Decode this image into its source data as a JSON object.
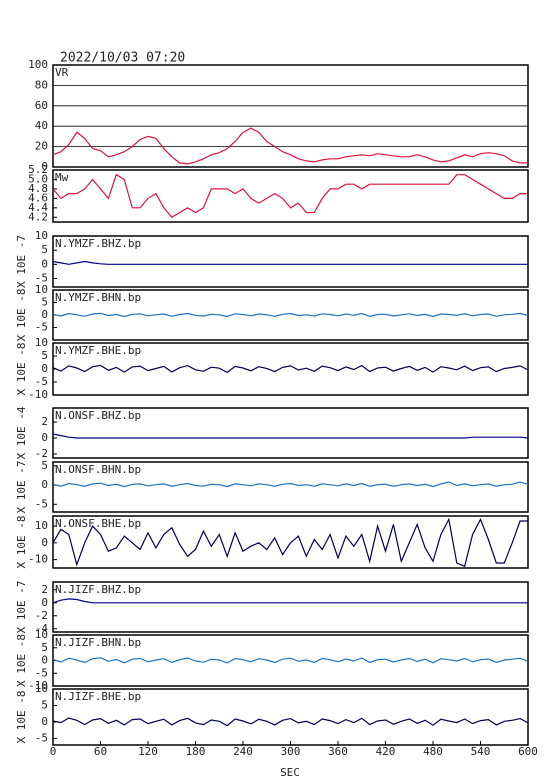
{
  "chart_data": {
    "type": "multi-panel-line",
    "title": "2022/10/03 07:20",
    "xlabel": "SEC",
    "x": [
      0,
      10,
      20,
      30,
      40,
      50,
      60,
      70,
      80,
      90,
      100,
      110,
      120,
      130,
      140,
      150,
      160,
      170,
      180,
      190,
      200,
      210,
      220,
      230,
      240,
      250,
      260,
      270,
      280,
      290,
      300,
      310,
      320,
      330,
      340,
      350,
      360,
      370,
      380,
      390,
      400,
      410,
      420,
      430,
      440,
      450,
      460,
      470,
      480,
      490,
      500,
      510,
      520,
      530,
      540,
      550,
      560,
      570,
      580,
      590,
      600
    ],
    "xlim": [
      0,
      600
    ],
    "xticks": [
      0,
      60,
      120,
      180,
      240,
      300,
      360,
      420,
      480,
      540,
      600
    ],
    "panels": [
      {
        "name": "VR",
        "color": "#dc143c",
        "grid": true,
        "ylim": [
          0,
          100
        ],
        "yticks": [
          0,
          20,
          40,
          60,
          80,
          100
        ],
        "values": [
          12,
          15,
          22,
          34,
          28,
          18,
          16,
          10,
          12,
          15,
          20,
          27,
          30,
          28,
          18,
          10,
          4,
          3,
          5,
          8,
          12,
          14,
          18,
          25,
          34,
          38,
          34,
          25,
          20,
          15,
          12,
          8,
          6,
          5,
          7,
          8,
          8,
          10,
          11,
          12,
          11,
          13,
          12,
          11,
          10,
          10,
          12,
          10,
          7,
          5,
          6,
          9,
          12,
          10,
          13,
          14,
          13,
          11,
          6,
          4,
          4
        ]
      },
      {
        "name": "Mw",
        "color": "#dc143c",
        "grid": false,
        "ylim": [
          4.1,
          5.2
        ],
        "yticks": [
          4.2,
          4.4,
          4.6,
          4.8,
          {
            "value": 5,
            "label": "5.0"
          },
          5.2
        ],
        "values": [
          4.8,
          4.6,
          4.7,
          4.7,
          4.8,
          5.0,
          4.8,
          4.6,
          5.1,
          5.0,
          4.4,
          4.4,
          4.6,
          4.7,
          4.4,
          4.2,
          4.3,
          4.4,
          4.3,
          4.4,
          4.8,
          4.8,
          4.8,
          4.7,
          4.8,
          4.6,
          4.5,
          4.6,
          4.7,
          4.6,
          4.4,
          4.5,
          4.3,
          4.3,
          4.6,
          4.8,
          4.8,
          4.9,
          4.9,
          4.8,
          4.9,
          4.9,
          4.9,
          4.9,
          4.9,
          4.9,
          4.9,
          4.9,
          4.9,
          4.9,
          4.9,
          5.1,
          5.1,
          5.0,
          4.9,
          4.8,
          4.7,
          4.6,
          4.6,
          4.7,
          4.7
        ]
      },
      {
        "name": "N.YMZF.BHZ.bp",
        "ylabel": "X 10E -7",
        "color": "#00008b",
        "grid": false,
        "ylim": [
          -8,
          10
        ],
        "yticks": [
          -5,
          0,
          5,
          10
        ],
        "values": [
          1,
          0.5,
          0,
          0.5,
          1,
          0.5,
          0.2,
          0,
          0,
          0,
          0,
          0,
          0,
          0,
          0,
          0,
          0,
          0,
          0,
          0,
          0,
          0,
          0,
          0,
          0,
          0,
          0,
          0,
          0,
          0,
          0,
          0,
          0,
          0,
          0,
          0,
          0,
          0,
          0,
          0,
          0,
          0,
          0,
          0,
          0,
          0,
          0,
          0,
          0,
          0,
          0,
          0,
          0,
          0,
          0,
          0,
          0,
          0,
          0,
          0,
          0
        ]
      },
      {
        "name": "N.YMZF.BHN.bp",
        "ylabel": "X 10E -8",
        "color": "#1e73be",
        "grid": false,
        "ylim": [
          -10,
          10
        ],
        "yticks": [
          -5,
          0,
          5,
          10
        ],
        "values": [
          0.3,
          -0.4,
          0.6,
          0.1,
          -0.5,
          0.4,
          0.7,
          -0.2,
          0.2,
          -0.6,
          0.3,
          0.5,
          -0.3,
          0.1,
          0.4,
          -0.5,
          0.2,
          0.6,
          -0.1,
          -0.4,
          0.3,
          0.1,
          -0.6,
          0.5,
          0.2,
          -0.3,
          0.4,
          0.1,
          -0.5,
          0.3,
          0.6,
          -0.2,
          0.1,
          -0.4,
          0.5,
          0.2,
          -0.3,
          0.4,
          -0.1,
          0.6,
          -0.5,
          0.2,
          0.3,
          -0.4,
          0.1,
          0.5,
          -0.2,
          0.3,
          -0.6,
          0.4,
          0.2,
          -0.1,
          0.5,
          -0.3,
          0.2,
          0.4,
          -0.5,
          0.1,
          0.3,
          0.6,
          -0.2
        ]
      },
      {
        "name": "N.YMZF.BHE.bp",
        "ylabel": "X 10E -8",
        "color": "#000050",
        "grid": false,
        "ylim": [
          -10,
          10
        ],
        "yticks": [
          -10,
          -5,
          0,
          5,
          10
        ],
        "values": [
          0.5,
          -0.8,
          1.2,
          0.4,
          -1.0,
          0.9,
          1.4,
          -0.5,
          0.6,
          -1.2,
          0.8,
          1.1,
          -0.6,
          0.2,
          1.0,
          -1.1,
          0.5,
          1.3,
          -0.3,
          -0.9,
          0.7,
          0.3,
          -1.3,
          1.0,
          0.4,
          -0.7,
          0.9,
          0.2,
          -1.0,
          0.6,
          1.2,
          -0.4,
          0.3,
          -0.9,
          1.1,
          0.5,
          -0.6,
          0.8,
          -0.2,
          1.3,
          -1.0,
          0.4,
          0.7,
          -0.8,
          0.2,
          1.0,
          -0.5,
          0.6,
          -1.2,
          0.9,
          0.4,
          -0.3,
          1.1,
          -0.6,
          0.5,
          0.8,
          -1.0,
          0.2,
          0.6,
          1.2,
          -0.4
        ]
      },
      {
        "name": "N.ONSF.BHZ.bp",
        "ylabel": "X 10E -4",
        "color": "#00008b",
        "grid": false,
        "ylim": [
          -2.5,
          3.75
        ],
        "yticks": [
          -2,
          0,
          2
        ],
        "values": [
          0.5,
          0.3,
          0.1,
          0,
          0,
          0,
          0,
          0,
          0,
          0,
          0,
          0,
          0,
          0,
          0,
          0,
          0,
          0,
          0,
          0,
          0,
          0,
          0,
          0,
          0,
          0,
          0,
          0,
          0,
          0,
          0,
          0,
          0,
          0,
          0,
          0,
          0,
          0,
          0,
          0,
          0,
          0,
          0,
          0,
          0,
          0,
          0,
          0,
          0,
          0,
          0,
          0,
          0,
          0.1,
          0.1,
          0.1,
          0.1,
          0.1,
          0.1,
          0.1,
          0
        ]
      },
      {
        "name": "N.ONSF.BHN.bp",
        "ylabel": "X 10E -7",
        "color": "#1e73be",
        "grid": false,
        "ylim": [
          -7,
          6
        ],
        "yticks": [
          -5,
          0,
          5
        ],
        "values": [
          0.2,
          -0.3,
          0.4,
          0.1,
          -0.3,
          0.3,
          0.5,
          -0.1,
          0.2,
          -0.4,
          0.2,
          0.3,
          -0.2,
          0.1,
          0.3,
          -0.3,
          0.1,
          0.4,
          -0.1,
          -0.3,
          0.2,
          0.1,
          -0.4,
          0.3,
          0.1,
          -0.2,
          0.3,
          0.1,
          -0.3,
          0.2,
          0.4,
          -0.1,
          0.1,
          -0.3,
          0.3,
          0.1,
          -0.2,
          0.3,
          -0.1,
          0.4,
          -0.3,
          0.1,
          0.2,
          -0.3,
          0.1,
          0.3,
          -0.1,
          0.2,
          -0.4,
          0.3,
          0.8,
          -0.1,
          0.3,
          -0.2,
          0.1,
          0.3,
          -0.3,
          0.1,
          0.2,
          0.8,
          0.2
        ]
      },
      {
        "name": "N.ONSF.BHE.bp",
        "ylabel": "X 10E -8",
        "color": "#000050",
        "grid": false,
        "ylim": [
          -15,
          16
        ],
        "yticks": [
          -10,
          0,
          10
        ],
        "values": [
          0,
          8,
          5,
          -13,
          0,
          10,
          5,
          -5,
          -3,
          4,
          0,
          -4,
          6,
          -3,
          5,
          9,
          -1,
          -8,
          -4,
          7,
          -2,
          5,
          -8,
          6,
          -5,
          -2,
          0,
          -4,
          3,
          -7,
          0,
          4,
          -8,
          2,
          -4,
          5,
          -9,
          4,
          -2,
          5,
          -11,
          10,
          -5,
          11,
          -11,
          0,
          11,
          -3,
          -11,
          5,
          14,
          -12,
          -14,
          5,
          14,
          2,
          -12,
          -12,
          0,
          13,
          13
        ]
      },
      {
        "name": "N.JIZF.BHZ.bp",
        "ylabel": "X 10E -7",
        "color": "#00008b",
        "grid": false,
        "ylim": [
          -4.5,
          3.2
        ],
        "yticks": [
          -4,
          -2,
          0,
          2
        ],
        "values": [
          0,
          0.4,
          0.6,
          0.5,
          0.2,
          0,
          0,
          0,
          0,
          0,
          0,
          0,
          0,
          0,
          0,
          0,
          0,
          0,
          0,
          0,
          0,
          0,
          0,
          0,
          0,
          0,
          0,
          0,
          0,
          0,
          0,
          0,
          0,
          0,
          0,
          0,
          0,
          0,
          0,
          0,
          0,
          0,
          0,
          0,
          0,
          0,
          0,
          0,
          0,
          0,
          0,
          0,
          0,
          0,
          0,
          0,
          0,
          0,
          0,
          0,
          0
        ]
      },
      {
        "name": "N.JIZF.BHN.bp",
        "ylabel": "X 10E -8",
        "color": "#1e73be",
        "grid": false,
        "ylim": [
          -10,
          10
        ],
        "yticks": [
          -10,
          -5,
          0,
          5,
          10
        ],
        "values": [
          0.4,
          -0.6,
          0.9,
          0.2,
          -0.8,
          0.7,
          1.1,
          -0.3,
          0.4,
          -0.9,
          0.5,
          0.8,
          -0.5,
          0.2,
          0.7,
          -0.8,
          0.3,
          1.0,
          -0.2,
          -0.7,
          0.5,
          0.2,
          -1.0,
          0.8,
          0.3,
          -0.5,
          0.7,
          0.2,
          -0.8,
          0.5,
          0.9,
          -0.3,
          0.2,
          -0.7,
          0.8,
          0.3,
          -0.5,
          0.6,
          -0.2,
          1.0,
          -0.8,
          0.3,
          0.5,
          -0.6,
          0.2,
          0.8,
          -0.4,
          0.5,
          -0.9,
          0.7,
          0.3,
          -0.2,
          0.8,
          -0.5,
          0.3,
          0.6,
          -0.8,
          0.2,
          0.5,
          0.9,
          -0.3
        ]
      },
      {
        "name": "N.JIZF.BHE.bp",
        "ylabel": "X 10E -8",
        "color": "#000050",
        "grid": false,
        "ylim": [
          -7,
          10
        ],
        "yticks": [
          -5,
          0,
          5,
          10
        ],
        "values": [
          0.3,
          -0.2,
          1.2,
          0.5,
          -0.8,
          0.6,
          1.0,
          -0.4,
          0.5,
          -0.9,
          0.7,
          0.9,
          -0.5,
          0.2,
          0.8,
          -0.9,
          0.4,
          1.1,
          -0.3,
          -0.8,
          0.6,
          0.2,
          -1.1,
          0.9,
          0.3,
          -0.6,
          0.8,
          0.2,
          -0.9,
          0.5,
          1.0,
          -0.3,
          0.2,
          -0.8,
          0.9,
          0.4,
          -0.5,
          0.7,
          -0.2,
          1.1,
          -0.8,
          0.3,
          0.6,
          -0.7,
          0.2,
          0.9,
          -0.4,
          0.5,
          -1.0,
          0.8,
          0.3,
          -0.2,
          0.9,
          -0.5,
          0.4,
          0.7,
          -0.9,
          0.2,
          0.5,
          1.0,
          -0.3
        ]
      }
    ]
  }
}
